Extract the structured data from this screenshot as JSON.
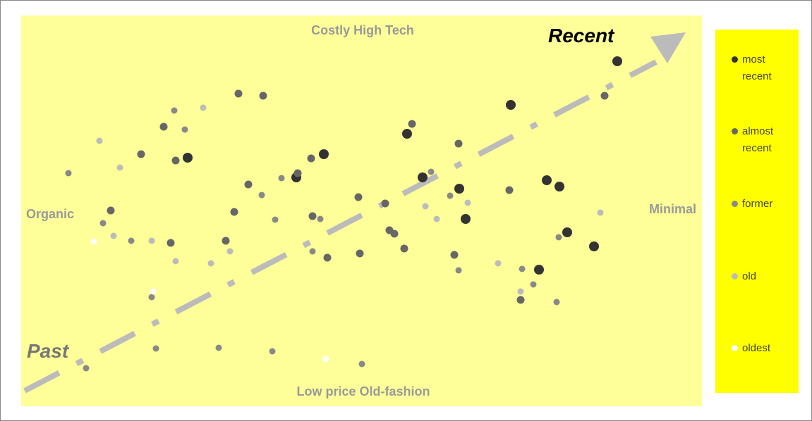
{
  "top_label": "Costly High Tech",
  "bottom_label": "Low price Old-fashion",
  "left_label": "Organic",
  "right_label": "Minimal",
  "arrow_end_label": "Recent",
  "arrow_start_label": "Past",
  "legend": [
    "most recent",
    "almost recent",
    "former",
    "old",
    "oldest"
  ]
}
